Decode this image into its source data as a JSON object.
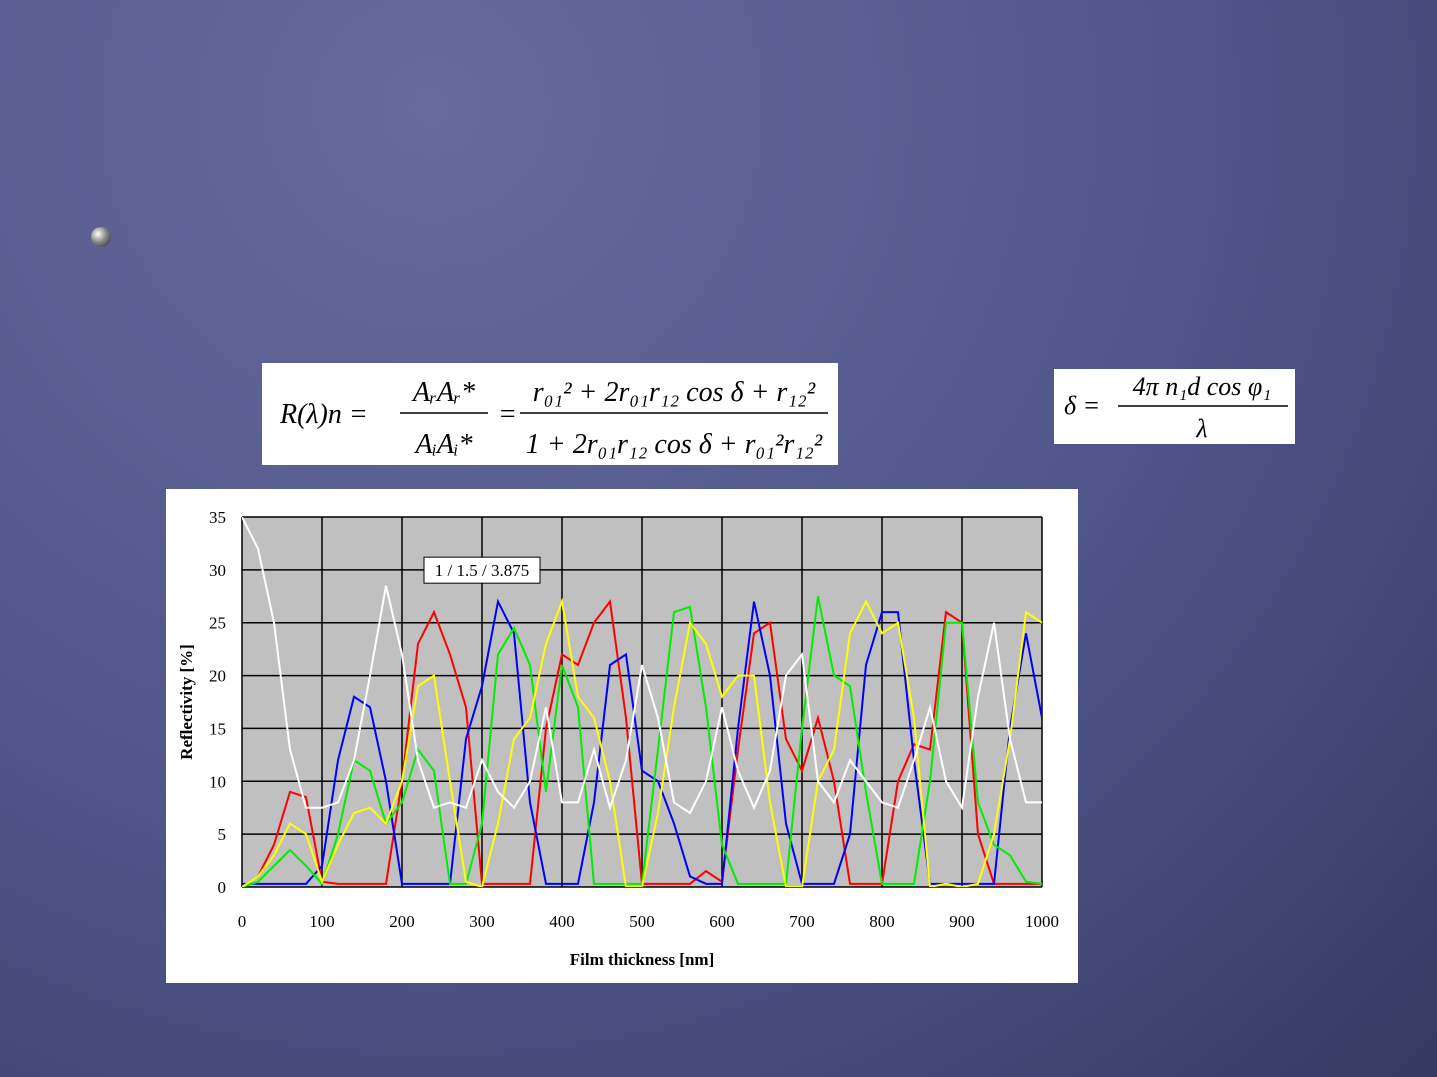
{
  "equations": [
    {
      "lhs": "R(λ)n =",
      "num1": "AᵣAᵣ*",
      "den1": "AᵢAᵢ*",
      "eq": "=",
      "num2": "r₀₁² + 2r₀₁r₁₂ cos δ + r₁₂²",
      "den2": "1 + 2r₀₁r₁₂ cos δ + r₀₁²r₁₂²"
    },
    {
      "lhs": "δ =",
      "num1": "4π n₁d cos φ₁",
      "den1": "λ"
    }
  ],
  "chart_data": {
    "type": "line",
    "xlabel": "Film thickness [nm]",
    "ylabel": "Reflectivity [%]",
    "annotation": "1 / 1.5 / 3.875",
    "xlim": [
      0,
      1000
    ],
    "xticks": [
      0,
      100,
      200,
      300,
      400,
      500,
      600,
      700,
      800,
      900,
      1000
    ],
    "ylim": [
      0,
      35
    ],
    "yticks": [
      0,
      5,
      10,
      15,
      20,
      25,
      30,
      35
    ],
    "grid": true,
    "x": [
      0,
      20,
      40,
      60,
      80,
      100,
      120,
      140,
      160,
      180,
      200,
      220,
      240,
      260,
      280,
      300,
      320,
      340,
      360,
      380,
      400,
      420,
      440,
      460,
      480,
      500,
      520,
      540,
      560,
      580,
      600,
      620,
      640,
      660,
      680,
      700,
      720,
      740,
      760,
      780,
      800,
      820,
      840,
      860,
      880,
      900,
      920,
      940,
      960,
      980,
      1000
    ],
    "series": [
      {
        "color": "#ff0000",
        "values": [
          0,
          1,
          4,
          9,
          8.5,
          0.5,
          0.3,
          0.3,
          0.3,
          0.3,
          10,
          23,
          26,
          22,
          17,
          0.3,
          0.3,
          0.3,
          0.3,
          15,
          22,
          21,
          25,
          27,
          16,
          0.3,
          0.3,
          0.3,
          0.3,
          1.5,
          0.5,
          13,
          24,
          25,
          14,
          11,
          16,
          10,
          0.3,
          0.3,
          0.3,
          10,
          13.5,
          13,
          26,
          25,
          5,
          0.3,
          0.3,
          0.3,
          0.3
        ]
      },
      {
        "color": "#0000ff",
        "values": [
          0.3,
          0.3,
          0.3,
          0.3,
          0.3,
          2,
          12,
          18,
          17,
          10,
          0.3,
          0.3,
          0.3,
          0.3,
          14,
          19,
          27,
          24,
          8,
          0.3,
          0.3,
          0.3,
          8,
          21,
          22,
          11,
          10,
          6,
          1,
          0.3,
          0.3,
          15,
          27,
          20,
          6,
          0.3,
          0.3,
          0.3,
          5,
          21,
          26,
          26,
          12,
          0.3,
          0.3,
          0.3,
          0.3,
          0.3,
          15,
          24,
          16
        ]
      },
      {
        "color": "#00ee00",
        "values": [
          0,
          0.5,
          2,
          3.5,
          2,
          0.3,
          5,
          12,
          11,
          6,
          8,
          13,
          11,
          0.3,
          0.3,
          6,
          22,
          24.5,
          21,
          9,
          21,
          17,
          0.3,
          0.3,
          0.3,
          0.3,
          13,
          26,
          26.5,
          17,
          4,
          0.3,
          0.3,
          0.3,
          0.3,
          15,
          27.5,
          20,
          19,
          9,
          0.3,
          0.3,
          0.3,
          10,
          25,
          25,
          8,
          4,
          3,
          0.5,
          0.3
        ]
      },
      {
        "color": "#ffff00",
        "values": [
          0,
          1,
          3,
          6,
          5,
          0.5,
          4,
          7,
          7.5,
          6,
          10,
          19,
          20,
          10,
          0.5,
          0,
          6,
          14,
          16,
          23,
          27,
          18,
          16,
          10,
          0,
          0,
          7,
          17,
          25,
          23,
          18,
          20,
          20,
          8,
          0,
          0,
          10,
          13,
          24,
          27,
          24,
          25,
          16,
          0,
          0.3,
          0,
          0.3,
          5,
          14,
          26,
          25
        ]
      },
      {
        "color": "#ffffff",
        "values": [
          35,
          32,
          25,
          13,
          7.5,
          7.5,
          8,
          12,
          20,
          28.5,
          22,
          12,
          7.5,
          8,
          7.5,
          12,
          9,
          7.5,
          10,
          17,
          8,
          8,
          13,
          7.5,
          12,
          21,
          16,
          8,
          7,
          10,
          17,
          11,
          7.5,
          11,
          20,
          22,
          10,
          8,
          12,
          10,
          8,
          7.5,
          12,
          17,
          10,
          7.5,
          18,
          25,
          14,
          8,
          8
        ]
      }
    ]
  }
}
